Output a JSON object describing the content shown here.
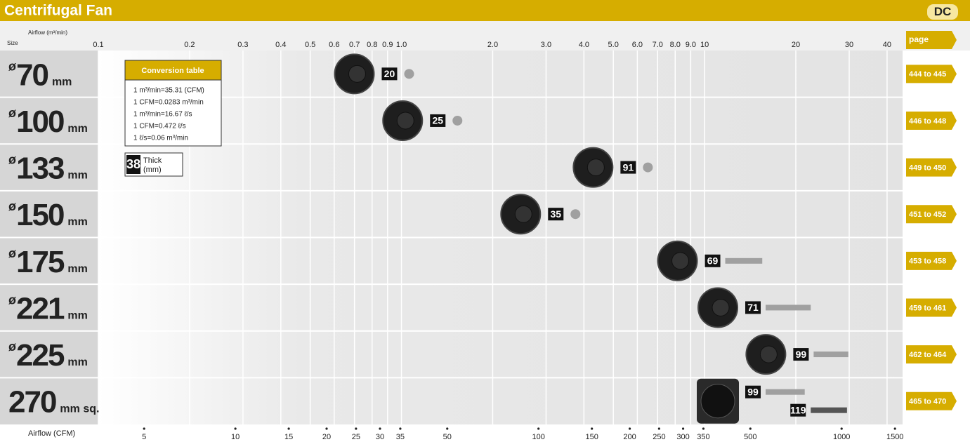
{
  "chart_data": {
    "type": "scatter",
    "title": "Centrifugal Fan",
    "badge": "DC",
    "xlabel": "Airflow (m³/min)",
    "size_label": "Size",
    "page_label": "page",
    "x2label": "Airflow (CFM)",
    "xscale": "log",
    "xlim": [
      0.1,
      45
    ],
    "xticks": [
      0.1,
      0.2,
      0.3,
      0.4,
      0.5,
      0.6,
      0.7,
      0.8,
      0.9,
      {
        "value": 1,
        "label": "1.0"
      },
      {
        "value": 2,
        "label": "2.0"
      },
      {
        "value": 3,
        "label": "3.0"
      },
      {
        "value": 4,
        "label": "4.0"
      },
      {
        "value": 5,
        "label": "5.0"
      },
      {
        "value": 6,
        "label": "6.0"
      },
      {
        "value": 7,
        "label": "7.0"
      },
      {
        "value": 8,
        "label": "8.0"
      },
      {
        "value": 9,
        "label": "9.0"
      },
      10,
      20,
      30,
      40
    ],
    "x2lim": [
      3.531,
      1589
    ],
    "x2ticks": [
      5,
      10,
      15,
      20,
      25,
      30,
      35,
      50,
      100,
      150,
      200,
      250,
      300,
      350,
      500,
      1000,
      1500
    ],
    "rows": [
      {
        "symbol": "ø",
        "size": "70",
        "unit": "mm",
        "pages": "444 to 445",
        "models": [
          {
            "thick": 20,
            "x": 1.06,
            "color": "#a0a0a0"
          }
        ]
      },
      {
        "symbol": "ø",
        "size": "100",
        "unit": "mm",
        "pages": "446 to 448",
        "models": [
          {
            "thick": 25,
            "x": 1.53,
            "color": "#a0a0a0"
          }
        ]
      },
      {
        "symbol": "ø",
        "size": "133",
        "unit": "mm",
        "pages": "449 to 450",
        "models": [
          {
            "thick": 91,
            "x": 6.5,
            "color": "#a0a0a0"
          }
        ]
      },
      {
        "symbol": "ø",
        "size": "150",
        "unit": "mm",
        "pages": "451 to 452",
        "models": [
          {
            "thick": 35,
            "x": 3.75,
            "color": "#a0a0a0"
          }
        ]
      },
      {
        "symbol": "ø",
        "size": "175",
        "unit": "mm",
        "pages": "453 to 458",
        "models": [
          {
            "thick": 69,
            "xmin": 11.7,
            "xmax": 15.5,
            "color": "#a0a0a0"
          }
        ]
      },
      {
        "symbol": "ø",
        "size": "221",
        "unit": "mm",
        "pages": "459 to 461",
        "models": [
          {
            "thick": 71,
            "xmin": 15.9,
            "xmax": 22.4,
            "color": "#a0a0a0"
          }
        ]
      },
      {
        "symbol": "ø",
        "size": "225",
        "unit": "mm",
        "pages": "462 to 464",
        "models": [
          {
            "thick": 99,
            "xmin": 22.9,
            "xmax": 29.8,
            "color": "#a0a0a0"
          }
        ]
      },
      {
        "size": "270",
        "unit": "mm sq.",
        "pages": "465 to 470",
        "models": [
          {
            "thick": 99,
            "xmin": 15.9,
            "xmax": 21.4,
            "color": "#a0a0a0"
          },
          {
            "thick": 119,
            "xmin": 22.4,
            "xmax": 29.5,
            "color": "#555555"
          }
        ]
      }
    ],
    "conversion": {
      "title": "Conversion table",
      "lines": [
        "1 m³/min=35.31 (CFM)",
        "1 CFM=0.0283 m³/min",
        "1 m³/min=16.67 ℓ/s",
        "1 CFM=0.472 ℓ/s",
        "1 ℓ/s=0.06 m³/min"
      ]
    },
    "legend": {
      "value": 38,
      "label": "Thick",
      "unit": "(mm)"
    }
  }
}
